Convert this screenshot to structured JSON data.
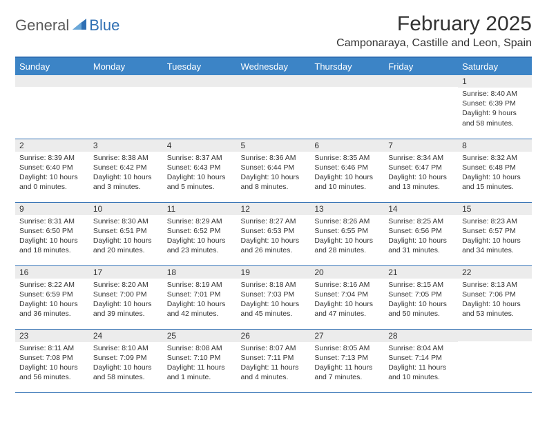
{
  "logo": {
    "text1": "General",
    "text2": "Blue"
  },
  "title": "February 2025",
  "subtitle": "Camponaraya, Castille and Leon, Spain",
  "colors": {
    "header_bg": "#3c84c6",
    "border": "#2f6fb3",
    "daynum_bg": "#ececec",
    "text": "#333333",
    "logo_gray": "#5a5a5a",
    "logo_blue": "#2f6fb3",
    "background": "#ffffff"
  },
  "typography": {
    "title_fontsize": 30,
    "subtitle_fontsize": 16,
    "dayhead_fontsize": 13,
    "daynum_fontsize": 12,
    "details_fontsize": 10.5
  },
  "dayNames": [
    "Sunday",
    "Monday",
    "Tuesday",
    "Wednesday",
    "Thursday",
    "Friday",
    "Saturday"
  ],
  "weeks": [
    [
      {
        "n": "",
        "sunrise": "",
        "sunset": "",
        "daylight": ""
      },
      {
        "n": "",
        "sunrise": "",
        "sunset": "",
        "daylight": ""
      },
      {
        "n": "",
        "sunrise": "",
        "sunset": "",
        "daylight": ""
      },
      {
        "n": "",
        "sunrise": "",
        "sunset": "",
        "daylight": ""
      },
      {
        "n": "",
        "sunrise": "",
        "sunset": "",
        "daylight": ""
      },
      {
        "n": "",
        "sunrise": "",
        "sunset": "",
        "daylight": ""
      },
      {
        "n": "1",
        "sunrise": "Sunrise: 8:40 AM",
        "sunset": "Sunset: 6:39 PM",
        "daylight": "Daylight: 9 hours and 58 minutes."
      }
    ],
    [
      {
        "n": "2",
        "sunrise": "Sunrise: 8:39 AM",
        "sunset": "Sunset: 6:40 PM",
        "daylight": "Daylight: 10 hours and 0 minutes."
      },
      {
        "n": "3",
        "sunrise": "Sunrise: 8:38 AM",
        "sunset": "Sunset: 6:42 PM",
        "daylight": "Daylight: 10 hours and 3 minutes."
      },
      {
        "n": "4",
        "sunrise": "Sunrise: 8:37 AM",
        "sunset": "Sunset: 6:43 PM",
        "daylight": "Daylight: 10 hours and 5 minutes."
      },
      {
        "n": "5",
        "sunrise": "Sunrise: 8:36 AM",
        "sunset": "Sunset: 6:44 PM",
        "daylight": "Daylight: 10 hours and 8 minutes."
      },
      {
        "n": "6",
        "sunrise": "Sunrise: 8:35 AM",
        "sunset": "Sunset: 6:46 PM",
        "daylight": "Daylight: 10 hours and 10 minutes."
      },
      {
        "n": "7",
        "sunrise": "Sunrise: 8:34 AM",
        "sunset": "Sunset: 6:47 PM",
        "daylight": "Daylight: 10 hours and 13 minutes."
      },
      {
        "n": "8",
        "sunrise": "Sunrise: 8:32 AM",
        "sunset": "Sunset: 6:48 PM",
        "daylight": "Daylight: 10 hours and 15 minutes."
      }
    ],
    [
      {
        "n": "9",
        "sunrise": "Sunrise: 8:31 AM",
        "sunset": "Sunset: 6:50 PM",
        "daylight": "Daylight: 10 hours and 18 minutes."
      },
      {
        "n": "10",
        "sunrise": "Sunrise: 8:30 AM",
        "sunset": "Sunset: 6:51 PM",
        "daylight": "Daylight: 10 hours and 20 minutes."
      },
      {
        "n": "11",
        "sunrise": "Sunrise: 8:29 AM",
        "sunset": "Sunset: 6:52 PM",
        "daylight": "Daylight: 10 hours and 23 minutes."
      },
      {
        "n": "12",
        "sunrise": "Sunrise: 8:27 AM",
        "sunset": "Sunset: 6:53 PM",
        "daylight": "Daylight: 10 hours and 26 minutes."
      },
      {
        "n": "13",
        "sunrise": "Sunrise: 8:26 AM",
        "sunset": "Sunset: 6:55 PM",
        "daylight": "Daylight: 10 hours and 28 minutes."
      },
      {
        "n": "14",
        "sunrise": "Sunrise: 8:25 AM",
        "sunset": "Sunset: 6:56 PM",
        "daylight": "Daylight: 10 hours and 31 minutes."
      },
      {
        "n": "15",
        "sunrise": "Sunrise: 8:23 AM",
        "sunset": "Sunset: 6:57 PM",
        "daylight": "Daylight: 10 hours and 34 minutes."
      }
    ],
    [
      {
        "n": "16",
        "sunrise": "Sunrise: 8:22 AM",
        "sunset": "Sunset: 6:59 PM",
        "daylight": "Daylight: 10 hours and 36 minutes."
      },
      {
        "n": "17",
        "sunrise": "Sunrise: 8:20 AM",
        "sunset": "Sunset: 7:00 PM",
        "daylight": "Daylight: 10 hours and 39 minutes."
      },
      {
        "n": "18",
        "sunrise": "Sunrise: 8:19 AM",
        "sunset": "Sunset: 7:01 PM",
        "daylight": "Daylight: 10 hours and 42 minutes."
      },
      {
        "n": "19",
        "sunrise": "Sunrise: 8:18 AM",
        "sunset": "Sunset: 7:03 PM",
        "daylight": "Daylight: 10 hours and 45 minutes."
      },
      {
        "n": "20",
        "sunrise": "Sunrise: 8:16 AM",
        "sunset": "Sunset: 7:04 PM",
        "daylight": "Daylight: 10 hours and 47 minutes."
      },
      {
        "n": "21",
        "sunrise": "Sunrise: 8:15 AM",
        "sunset": "Sunset: 7:05 PM",
        "daylight": "Daylight: 10 hours and 50 minutes."
      },
      {
        "n": "22",
        "sunrise": "Sunrise: 8:13 AM",
        "sunset": "Sunset: 7:06 PM",
        "daylight": "Daylight: 10 hours and 53 minutes."
      }
    ],
    [
      {
        "n": "23",
        "sunrise": "Sunrise: 8:11 AM",
        "sunset": "Sunset: 7:08 PM",
        "daylight": "Daylight: 10 hours and 56 minutes."
      },
      {
        "n": "24",
        "sunrise": "Sunrise: 8:10 AM",
        "sunset": "Sunset: 7:09 PM",
        "daylight": "Daylight: 10 hours and 58 minutes."
      },
      {
        "n": "25",
        "sunrise": "Sunrise: 8:08 AM",
        "sunset": "Sunset: 7:10 PM",
        "daylight": "Daylight: 11 hours and 1 minute."
      },
      {
        "n": "26",
        "sunrise": "Sunrise: 8:07 AM",
        "sunset": "Sunset: 7:11 PM",
        "daylight": "Daylight: 11 hours and 4 minutes."
      },
      {
        "n": "27",
        "sunrise": "Sunrise: 8:05 AM",
        "sunset": "Sunset: 7:13 PM",
        "daylight": "Daylight: 11 hours and 7 minutes."
      },
      {
        "n": "28",
        "sunrise": "Sunrise: 8:04 AM",
        "sunset": "Sunset: 7:14 PM",
        "daylight": "Daylight: 11 hours and 10 minutes."
      },
      {
        "n": "",
        "sunrise": "",
        "sunset": "",
        "daylight": ""
      }
    ]
  ]
}
